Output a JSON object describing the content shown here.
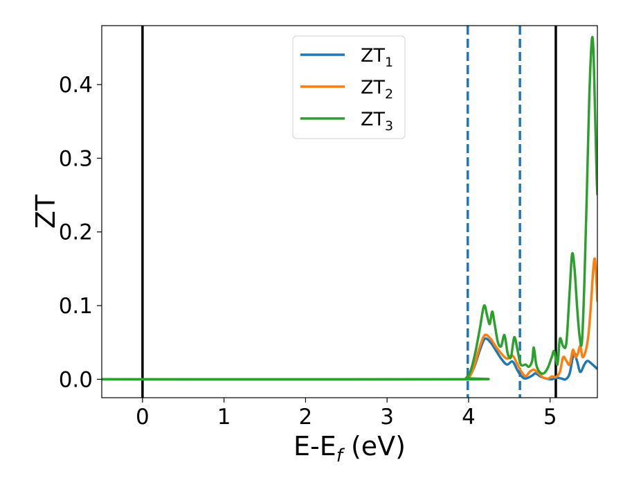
{
  "chart_data": {
    "type": "line",
    "xlabel_main": "E-E",
    "xlabel_sub": "f",
    "xlabel_tail": " (eV)",
    "ylabel": "ZT",
    "xlim": [
      -0.5,
      5.58
    ],
    "ylim": [
      -0.025,
      0.48
    ],
    "grid": false,
    "legend_position": "top-center",
    "xticks": [
      0,
      1,
      2,
      3,
      4,
      5
    ],
    "xtick_labels": [
      "0",
      "1",
      "2",
      "3",
      "4",
      "5"
    ],
    "yticks": [
      0.0,
      0.1,
      0.2,
      0.3,
      0.4
    ],
    "ytick_labels": [
      "0.0",
      "0.1",
      "0.2",
      "0.3",
      "0.4"
    ],
    "vertical_lines": [
      {
        "x": 0.0,
        "style": "solid",
        "color": "#000000"
      },
      {
        "x": 5.07,
        "style": "solid",
        "color": "#000000"
      },
      {
        "x": 3.99,
        "style": "dashed",
        "color": "#1f77b4"
      },
      {
        "x": 4.63,
        "style": "dashed",
        "color": "#1f77b4"
      }
    ],
    "series": [
      {
        "name": "ZT",
        "subscript": "1",
        "color": "#1f77b4",
        "points": [
          [
            -0.5,
            0
          ],
          [
            3.9,
            0
          ],
          [
            3.97,
            0.001
          ],
          [
            4.02,
            0.005
          ],
          [
            4.08,
            0.02
          ],
          [
            4.14,
            0.04
          ],
          [
            4.2,
            0.055
          ],
          [
            4.27,
            0.05
          ],
          [
            4.33,
            0.04
          ],
          [
            4.4,
            0.028
          ],
          [
            4.47,
            0.02
          ],
          [
            4.54,
            0.024
          ],
          [
            4.6,
            0.012
          ],
          [
            4.65,
            0.004
          ],
          [
            4.7,
            0.001
          ],
          [
            4.78,
            0.005
          ],
          [
            4.82,
            0.008
          ],
          [
            4.88,
            0.004
          ],
          [
            4.95,
            0.001
          ],
          [
            5.02,
            0
          ],
          [
            5.08,
            0.002
          ],
          [
            5.14,
            0.001
          ],
          [
            5.19,
            0
          ],
          [
            5.24,
            0.008
          ],
          [
            5.29,
            0.035
          ],
          [
            5.33,
            0.025
          ],
          [
            5.37,
            0.01
          ],
          [
            5.42,
            0.02
          ],
          [
            5.46,
            0.025
          ],
          [
            5.52,
            0.02
          ],
          [
            5.58,
            0.014
          ]
        ]
      },
      {
        "name": "ZT",
        "subscript": "2",
        "color": "#ff7f0e",
        "points": [
          [
            -0.5,
            0
          ],
          [
            3.9,
            0
          ],
          [
            3.97,
            0.001
          ],
          [
            4.02,
            0.005
          ],
          [
            4.08,
            0.022
          ],
          [
            4.14,
            0.045
          ],
          [
            4.2,
            0.06
          ],
          [
            4.27,
            0.055
          ],
          [
            4.33,
            0.045
          ],
          [
            4.4,
            0.035
          ],
          [
            4.47,
            0.028
          ],
          [
            4.54,
            0.032
          ],
          [
            4.6,
            0.02
          ],
          [
            4.65,
            0.01
          ],
          [
            4.7,
            0.004
          ],
          [
            4.75,
            0.01
          ],
          [
            4.8,
            0.013
          ],
          [
            4.86,
            0.008
          ],
          [
            4.92,
            0.002
          ],
          [
            4.98,
            0.001
          ],
          [
            5.02,
            0.004
          ],
          [
            5.07,
            0.003
          ],
          [
            5.12,
            0.01
          ],
          [
            5.16,
            0.03
          ],
          [
            5.2,
            0.025
          ],
          [
            5.24,
            0.02
          ],
          [
            5.28,
            0.04
          ],
          [
            5.31,
            0.03
          ],
          [
            5.34,
            0.035
          ],
          [
            5.37,
            0.045
          ],
          [
            5.4,
            0.03
          ],
          [
            5.44,
            0.04
          ],
          [
            5.47,
            0.06
          ],
          [
            5.5,
            0.1
          ],
          [
            5.53,
            0.15
          ],
          [
            5.55,
            0.163
          ],
          [
            5.57,
            0.13
          ],
          [
            5.58,
            0.105
          ]
        ]
      },
      {
        "name": "ZT",
        "subscript": "3",
        "color": "#2ca02c",
        "points": [
          [
            -0.5,
            0
          ],
          [
            3.9,
            0
          ],
          [
            3.97,
            0.002
          ],
          [
            4.02,
            0.01
          ],
          [
            4.08,
            0.035
          ],
          [
            4.14,
            0.07
          ],
          [
            4.19,
            0.1
          ],
          [
            4.23,
            0.085
          ],
          [
            4.26,
            0.075
          ],
          [
            4.29,
            0.092
          ],
          [
            4.32,
            0.075
          ],
          [
            4.36,
            0.05
          ],
          [
            4.4,
            0.045
          ],
          [
            4.44,
            0.06
          ],
          [
            4.48,
            0.035
          ],
          [
            4.52,
            0.03
          ],
          [
            4.56,
            0.057
          ],
          [
            4.6,
            0.04
          ],
          [
            4.64,
            0.02
          ],
          [
            4.7,
            0.02
          ],
          [
            4.74,
            0.017
          ],
          [
            4.78,
            0.025
          ],
          [
            4.8,
            0.043
          ],
          [
            4.83,
            0.02
          ],
          [
            4.87,
            0.01
          ],
          [
            4.92,
            0.008
          ],
          [
            4.97,
            0.015
          ],
          [
            5.02,
            0.03
          ],
          [
            5.05,
            0.038
          ],
          [
            5.09,
            0.02
          ],
          [
            5.12,
            0.055
          ],
          [
            5.16,
            0.045
          ],
          [
            5.2,
            0.05
          ],
          [
            5.24,
            0.12
          ],
          [
            5.27,
            0.17
          ],
          [
            5.3,
            0.15
          ],
          [
            5.33,
            0.1
          ],
          [
            5.36,
            0.06
          ],
          [
            5.39,
            0.05
          ],
          [
            5.42,
            0.13
          ],
          [
            5.45,
            0.25
          ],
          [
            5.48,
            0.38
          ],
          [
            5.51,
            0.458
          ],
          [
            5.53,
            0.45
          ],
          [
            5.55,
            0.37
          ],
          [
            5.57,
            0.28
          ],
          [
            5.58,
            0.25
          ]
        ]
      }
    ]
  }
}
